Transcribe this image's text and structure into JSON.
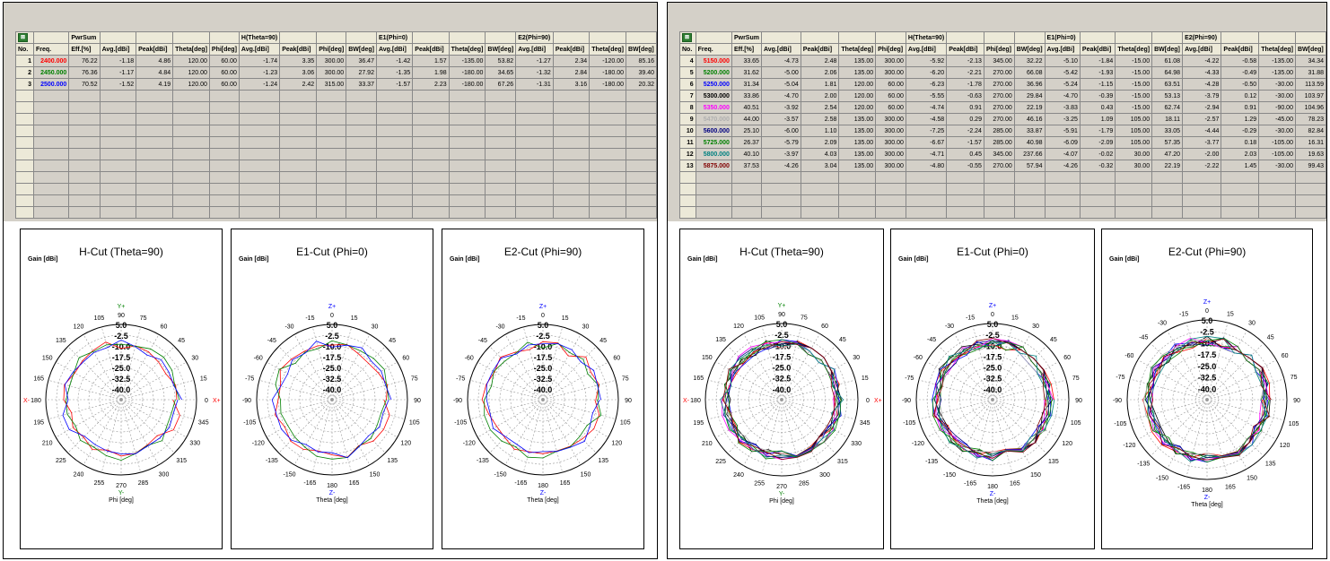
{
  "table_headers": {
    "row1": [
      "",
      "",
      "PwrSum",
      "",
      "",
      "",
      "",
      "H(Theta=90)",
      "",
      "",
      "",
      "E1(Phi=0)",
      "",
      "",
      "",
      "E2(Phi=90)",
      "",
      "",
      ""
    ],
    "row2": [
      "No.",
      "Freq.",
      "Eff.[%]",
      "Avg.[dBi]",
      "Peak[dBi]",
      "Theta[deg]",
      "Phi[deg]",
      "Avg.[dBi]",
      "Peak[dBi]",
      "Phi[deg]",
      "BW[deg]",
      "Avg.[dBi]",
      "Peak[dBi]",
      "Theta[deg]",
      "BW[deg]",
      "Avg.[dBi]",
      "Peak[dBi]",
      "Theta[deg]",
      "BW[deg]"
    ]
  },
  "left_rows": [
    {
      "no": "1",
      "freq": "2400.000",
      "color": "#ff0000",
      "cells": [
        "76.22",
        "-1.18",
        "4.86",
        "120.00",
        "60.00",
        "-1.74",
        "3.35",
        "300.00",
        "36.47",
        "-1.42",
        "1.57",
        "-135.00",
        "53.82",
        "-1.27",
        "2.34",
        "-120.00",
        "85.16"
      ]
    },
    {
      "no": "2",
      "freq": "2450.000",
      "color": "#008000",
      "cells": [
        "76.36",
        "-1.17",
        "4.84",
        "120.00",
        "60.00",
        "-1.23",
        "3.06",
        "300.00",
        "27.92",
        "-1.35",
        "1.98",
        "-180.00",
        "34.65",
        "-1.32",
        "2.84",
        "-180.00",
        "39.40"
      ]
    },
    {
      "no": "3",
      "freq": "2500.000",
      "color": "#0000ff",
      "cells": [
        "70.52",
        "-1.52",
        "4.19",
        "120.00",
        "60.00",
        "-1.24",
        "2.42",
        "315.00",
        "33.37",
        "-1.57",
        "2.23",
        "-180.00",
        "67.26",
        "-1.31",
        "3.16",
        "-180.00",
        "20.32"
      ]
    }
  ],
  "right_rows": [
    {
      "no": "4",
      "freq": "5150.000",
      "color": "#ff0000",
      "cells": [
        "33.65",
        "-4.73",
        "2.48",
        "135.00",
        "300.00",
        "-5.92",
        "-2.13",
        "345.00",
        "32.22",
        "-5.10",
        "-1.84",
        "-15.00",
        "61.08",
        "-4.22",
        "-0.58",
        "-135.00",
        "34.34"
      ]
    },
    {
      "no": "5",
      "freq": "5200.000",
      "color": "#008000",
      "cells": [
        "31.62",
        "-5.00",
        "2.06",
        "135.00",
        "300.00",
        "-6.20",
        "-2.21",
        "270.00",
        "66.08",
        "-5.42",
        "-1.93",
        "-15.00",
        "64.98",
        "-4.33",
        "-0.49",
        "-135.00",
        "31.88"
      ]
    },
    {
      "no": "6",
      "freq": "5250.000",
      "color": "#0000ff",
      "cells": [
        "31.34",
        "-5.04",
        "1.81",
        "120.00",
        "60.00",
        "-6.23",
        "-1.78",
        "270.00",
        "36.96",
        "-5.24",
        "-1.15",
        "-15.00",
        "63.51",
        "-4.28",
        "-0.50",
        "-30.00",
        "113.59"
      ]
    },
    {
      "no": "7",
      "freq": "5300.000",
      "color": "#000000",
      "cells": [
        "33.86",
        "-4.70",
        "2.00",
        "120.00",
        "60.00",
        "-5.55",
        "-0.63",
        "270.00",
        "29.84",
        "-4.70",
        "-0.39",
        "-15.00",
        "53.13",
        "-3.79",
        "0.12",
        "-30.00",
        "103.97"
      ]
    },
    {
      "no": "8",
      "freq": "5350.000",
      "color": "#ff00ff",
      "cells": [
        "40.51",
        "-3.92",
        "2.54",
        "120.00",
        "60.00",
        "-4.74",
        "0.91",
        "270.00",
        "22.19",
        "-3.83",
        "0.43",
        "-15.00",
        "62.74",
        "-2.94",
        "0.91",
        "-90.00",
        "104.96"
      ]
    },
    {
      "no": "9",
      "freq": "5470.000",
      "color": "#b0b0b0",
      "cells": [
        "44.00",
        "-3.57",
        "2.58",
        "135.00",
        "300.00",
        "-4.58",
        "0.29",
        "270.00",
        "46.16",
        "-3.25",
        "1.09",
        "105.00",
        "18.11",
        "-2.57",
        "1.29",
        "-45.00",
        "78.23"
      ]
    },
    {
      "no": "10",
      "freq": "5600.000",
      "color": "#000080",
      "cells": [
        "25.10",
        "-6.00",
        "1.10",
        "135.00",
        "300.00",
        "-7.25",
        "-2.24",
        "285.00",
        "33.87",
        "-5.91",
        "-1.79",
        "105.00",
        "33.05",
        "-4.44",
        "-0.29",
        "-30.00",
        "82.84"
      ]
    },
    {
      "no": "11",
      "freq": "5725.000",
      "color": "#008000",
      "cells": [
        "26.37",
        "-5.79",
        "2.09",
        "135.00",
        "300.00",
        "-6.67",
        "-1.57",
        "285.00",
        "40.98",
        "-6.09",
        "-2.09",
        "105.00",
        "57.35",
        "-3.77",
        "0.18",
        "-105.00",
        "16.31"
      ]
    },
    {
      "no": "12",
      "freq": "5800.000",
      "color": "#008080",
      "cells": [
        "40.10",
        "-3.97",
        "4.03",
        "135.00",
        "300.00",
        "-4.71",
        "0.45",
        "345.00",
        "237.66",
        "-4.07",
        "-0.02",
        "30.00",
        "47.20",
        "-2.00",
        "2.03",
        "-105.00",
        "19.63"
      ]
    },
    {
      "no": "13",
      "freq": "5875.000",
      "color": "#800000",
      "cells": [
        "37.53",
        "-4.26",
        "3.04",
        "135.00",
        "300.00",
        "-4.80",
        "-0.55",
        "270.00",
        "57.94",
        "-4.26",
        "-0.32",
        "30.00",
        "22.19",
        "-2.22",
        "1.45",
        "-30.00",
        "99.43"
      ]
    }
  ],
  "plot_titles": {
    "h": "H-Cut (Theta=90)",
    "e1": "E1-Cut (Phi=0)",
    "e2": "E2-Cut (Phi=90)"
  },
  "gain_label": "Gain [dBi]",
  "radial_labels": [
    "5.0",
    "-2.5",
    "-10.0",
    "-17.5",
    "-25.0",
    "-32.5",
    "-40.0"
  ],
  "h_angles": [
    "90",
    "75",
    "60",
    "45",
    "30",
    "15",
    "0",
    "345",
    "330",
    "315",
    "300",
    "285",
    "270",
    "255",
    "240",
    "225",
    "210",
    "195",
    "180",
    "165",
    "150",
    "135",
    "120",
    "105"
  ],
  "e_angles": [
    "0",
    "15",
    "30",
    "45",
    "60",
    "75",
    "90",
    "105",
    "120",
    "135",
    "150",
    "165",
    "180",
    "-165",
    "-150",
    "-135",
    "-120",
    "-105",
    "-90",
    "-75",
    "-60",
    "-45",
    "-30",
    "-15"
  ],
  "h_axes": {
    "top": "Y+",
    "bottom": "Y-",
    "left": "X-",
    "right": "X+",
    "xlabel": "Phi [deg]"
  },
  "e_axes": {
    "top": "Z+",
    "bottom": "Z-",
    "xlabel": "Theta [deg]"
  },
  "colors": {
    "panel_bg": "#d4d0c8",
    "header_bg": "#ece9d8",
    "excel_icon": "#2e7d32"
  }
}
